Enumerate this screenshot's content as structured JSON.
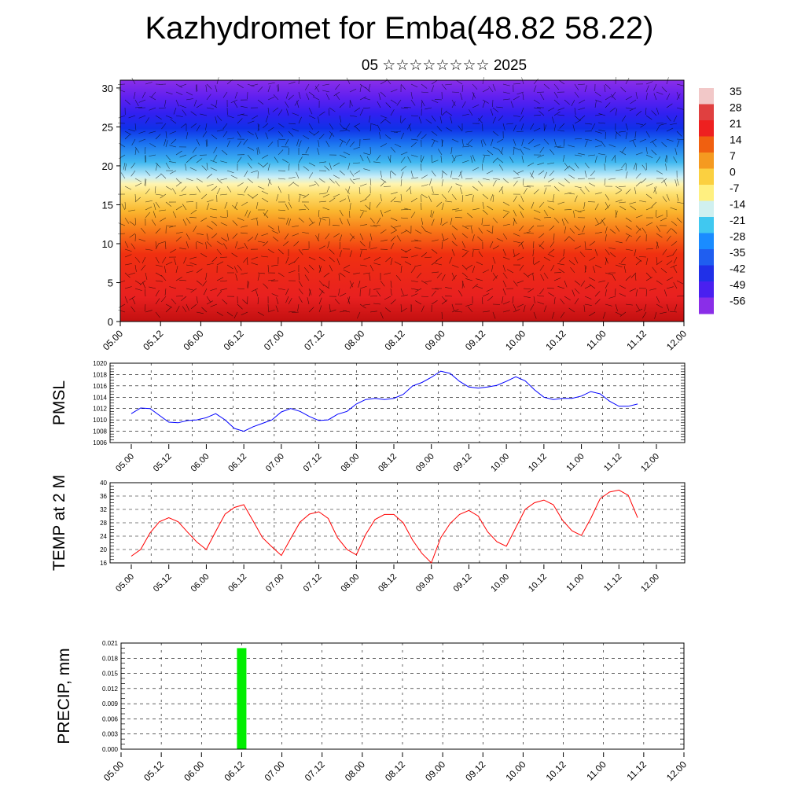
{
  "header": {
    "title": "Kazhydromet for Emba(48.82 58.22)",
    "subtitle": "05 ☆☆☆☆☆☆☆☆ 2025"
  },
  "time_ticks": [
    "05.00",
    "05.12",
    "06.00",
    "06.12",
    "07.00",
    "07.12",
    "08.00",
    "08.12",
    "09.00",
    "09.12",
    "10.00",
    "10.12",
    "11.00",
    "11.12",
    "12.00"
  ],
  "chart_data": [
    {
      "type": "heatmap",
      "title": "Kazhydromet for Emba(48.82 58.22)",
      "subtitle": "05 ☆☆☆☆☆☆☆☆ 2025",
      "x": [
        0,
        12,
        24,
        36,
        48,
        60,
        72,
        84,
        96,
        108,
        120,
        132,
        144,
        156,
        168
      ],
      "xlim": [
        0,
        168
      ],
      "ylim": [
        0,
        31
      ],
      "yticks": [
        0,
        5,
        10,
        15,
        20,
        25,
        30
      ],
      "colorbar": {
        "labels": [
          "35",
          "28",
          "21",
          "14",
          "7",
          "0",
          "-7",
          "-14",
          "-21",
          "-28",
          "-35",
          "-42",
          "-49",
          "-56"
        ],
        "colors": [
          "#f2c8c8",
          "#e04040",
          "#ee2020",
          "#f06010",
          "#f59a20",
          "#fbd040",
          "#fff080",
          "#d0f0f0",
          "#40c8f0",
          "#1a8cff",
          "#1f5ef0",
          "#2030e8",
          "#4a20f0",
          "#8a2ee8"
        ]
      },
      "legend_position": "right",
      "grid": false
    },
    {
      "type": "line",
      "ylabel": "PMSL",
      "ylim": [
        1006,
        1020
      ],
      "yticks": [
        1006,
        1008,
        1010,
        1012,
        1014,
        1016,
        1018,
        1020
      ],
      "x": [
        0,
        3,
        6,
        9,
        12,
        15,
        18,
        21,
        24,
        27,
        30,
        33,
        36,
        39,
        42,
        45,
        48,
        51,
        54,
        57,
        60,
        63,
        66,
        69,
        72,
        75,
        78,
        81,
        84,
        87,
        90,
        93,
        96,
        99,
        102,
        105,
        108,
        111,
        114,
        117,
        120,
        123,
        126,
        129,
        132,
        135,
        138,
        141,
        144,
        147,
        150,
        153,
        156,
        159,
        162
      ],
      "series": [
        {
          "color": "#0000ff",
          "values": [
            1011.1,
            1012.1,
            1012.0,
            1010.8,
            1009.6,
            1009.5,
            1009.9,
            1010.0,
            1010.4,
            1011.1,
            1010.0,
            1008.5,
            1008.0,
            1008.8,
            1009.4,
            1010.0,
            1011.4,
            1012.0,
            1011.5,
            1010.6,
            1009.9,
            1010.0,
            1011.0,
            1011.5,
            1012.8,
            1013.6,
            1013.8,
            1013.6,
            1013.8,
            1014.5,
            1016.0,
            1016.6,
            1017.5,
            1018.6,
            1018.2,
            1016.8,
            1015.8,
            1015.6,
            1015.8,
            1016.1,
            1016.8,
            1017.6,
            1016.9,
            1015.3,
            1014.0,
            1013.6,
            1013.8,
            1013.8,
            1014.2,
            1015.0,
            1014.6,
            1013.3,
            1012.4,
            1012.4,
            1012.8
          ]
        }
      ],
      "grid": true
    },
    {
      "type": "line",
      "ylabel": "TEMP at 2 M",
      "ylim": [
        16,
        40
      ],
      "yticks": [
        16,
        20,
        24,
        28,
        32,
        36,
        40
      ],
      "x": [
        0,
        3,
        6,
        9,
        12,
        15,
        18,
        21,
        24,
        27,
        30,
        33,
        36,
        39,
        42,
        45,
        48,
        51,
        54,
        57,
        60,
        63,
        66,
        69,
        72,
        75,
        78,
        81,
        84,
        87,
        90,
        93,
        96,
        99,
        102,
        105,
        108,
        111,
        114,
        117,
        120,
        123,
        126,
        129,
        132,
        135,
        138,
        141,
        144,
        147,
        150,
        153,
        156,
        159,
        162
      ],
      "series": [
        {
          "color": "#ff0000",
          "values": [
            18.0,
            20.0,
            25.0,
            28.3,
            29.5,
            28.3,
            25.2,
            22.2,
            20.0,
            25.4,
            30.6,
            32.6,
            33.4,
            28.5,
            23.5,
            20.8,
            18.2,
            23.3,
            28.2,
            30.6,
            31.3,
            29.3,
            23.5,
            20.0,
            18.4,
            24.5,
            29.0,
            30.5,
            30.5,
            28.0,
            22.8,
            18.8,
            16.0,
            23.5,
            27.8,
            30.5,
            31.7,
            30.0,
            25.3,
            22.3,
            21.0,
            26.5,
            32.0,
            34.0,
            34.8,
            33.4,
            28.7,
            25.6,
            24.2,
            29.3,
            35.2,
            37.2,
            37.8,
            36.2,
            29.5
          ]
        }
      ],
      "grid": true
    },
    {
      "type": "bar",
      "ylabel": "PRECIP, mm",
      "ylim": [
        0,
        0.021
      ],
      "yticks": [
        "0.000",
        "0.003",
        "0.006",
        "0.009",
        "0.012",
        "0.015",
        "0.018",
        "0.021"
      ],
      "bars": [
        {
          "x": 36,
          "value": 0.02,
          "color": "#00ee00"
        }
      ],
      "grid": true
    }
  ]
}
